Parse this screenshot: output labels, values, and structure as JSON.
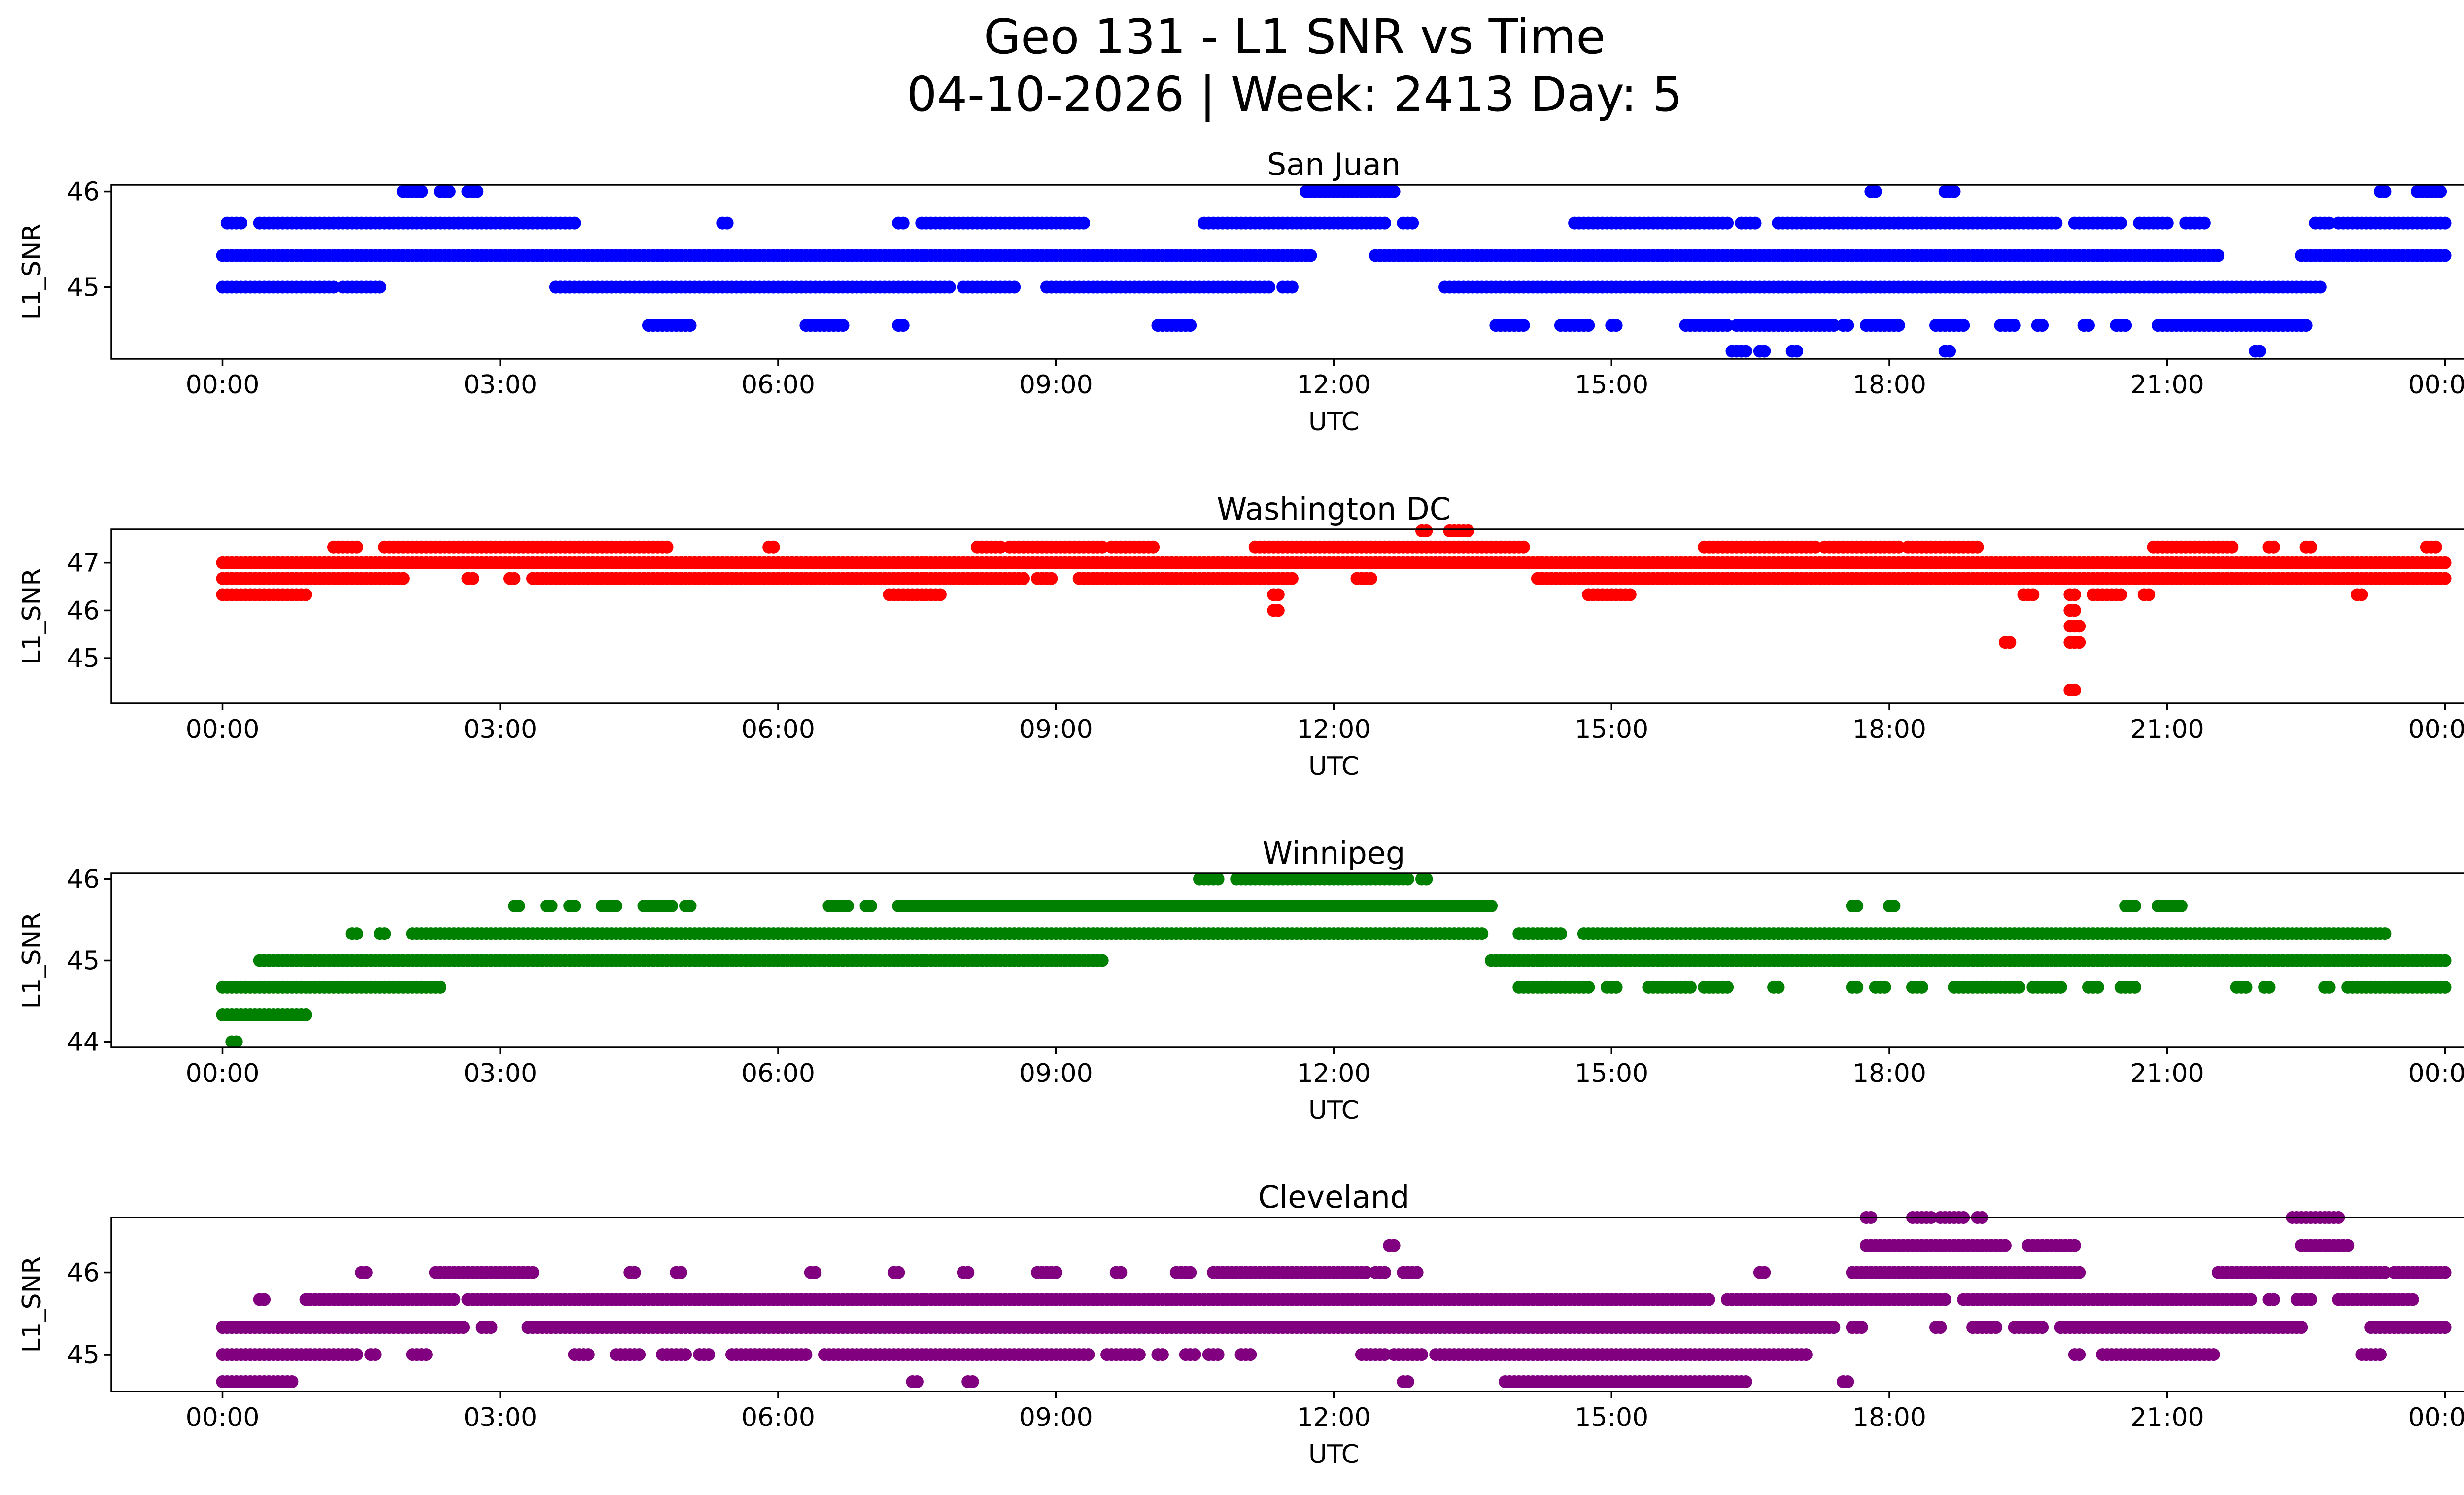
{
  "figure": {
    "title_line1": "Geo 131 - L1 SNR vs Time",
    "title_line2": "04-10-2026 | Week: 2413 Day: 5"
  },
  "chart_data": [
    {
      "type": "scatter",
      "title": "San Juan",
      "xlabel": "UTC",
      "ylabel": "L1_SNR",
      "color": "#0000ff",
      "x_unit": "hours UTC",
      "xlim": [
        -1.2,
        25.2
      ],
      "x_tick_values": [
        0,
        3,
        6,
        9,
        12,
        15,
        18,
        21,
        24
      ],
      "x_tick_labels": [
        "00:00",
        "03:00",
        "06:00",
        "09:00",
        "12:00",
        "15:00",
        "18:00",
        "21:00",
        "00:00"
      ],
      "ylim": [
        44.25,
        46.07
      ],
      "y_ticks": [
        45,
        46
      ],
      "runs": [
        {
          "y": 45.33,
          "x": [
            [
              0.0,
              11.75
            ],
            [
              12.45,
              21.55
            ],
            [
              22.45,
              24.0
            ]
          ]
        },
        {
          "y": 45.0,
          "x": [
            [
              0.0,
              1.2
            ],
            [
              1.3,
              1.7
            ],
            [
              3.65,
              3.75
            ],
            [
              3.6,
              3.65
            ],
            [
              3.6,
              7.85
            ],
            [
              8.0,
              8.55
            ],
            [
              8.9,
              11.3
            ],
            [
              11.45,
              11.55
            ],
            [
              13.2,
              22.65
            ]
          ]
        },
        {
          "y": 45.67,
          "x": [
            [
              0.05,
              0.22
            ],
            [
              0.4,
              3.8
            ],
            [
              5.4,
              5.45
            ],
            [
              7.3,
              7.35
            ],
            [
              7.55,
              9.3
            ],
            [
              10.6,
              12.55
            ],
            [
              12.75,
              12.85
            ],
            [
              14.6,
              16.25
            ],
            [
              16.4,
              16.55
            ],
            [
              16.8,
              19.8
            ],
            [
              20.0,
              20.5
            ],
            [
              20.7,
              21.0
            ],
            [
              21.2,
              21.4
            ],
            [
              22.6,
              22.75
            ],
            [
              22.85,
              24.0
            ]
          ]
        },
        {
          "y": 46.0,
          "x": [
            [
              1.95,
              2.15
            ],
            [
              2.35,
              2.45
            ],
            [
              2.65,
              2.75
            ],
            [
              11.7,
              12.65
            ],
            [
              17.8,
              17.85
            ],
            [
              18.6,
              18.7
            ],
            [
              23.3,
              23.35
            ],
            [
              23.7,
              23.95
            ]
          ]
        },
        {
          "y": 44.6,
          "x": [
            [
              4.6,
              5.05
            ],
            [
              6.3,
              6.7
            ],
            [
              7.3,
              7.35
            ],
            [
              10.1,
              10.45
            ],
            [
              13.75,
              14.05
            ],
            [
              14.45,
              14.75
            ],
            [
              15.0,
              15.05
            ],
            [
              15.8,
              16.25
            ],
            [
              16.35,
              17.4
            ],
            [
              17.5,
              17.55
            ],
            [
              17.75,
              18.1
            ],
            [
              18.5,
              18.8
            ],
            [
              19.2,
              19.35
            ],
            [
              19.6,
              19.65
            ],
            [
              20.1,
              20.15
            ],
            [
              20.45,
              20.55
            ],
            [
              20.9,
              22.45
            ],
            [
              22.45,
              22.5
            ]
          ]
        },
        {
          "y": 44.33,
          "x": [
            [
              16.3,
              16.45
            ],
            [
              16.6,
              16.65
            ],
            [
              16.95,
              17.0
            ],
            [
              18.6,
              18.65
            ],
            [
              21.95,
              22.0
            ]
          ]
        }
      ]
    },
    {
      "type": "scatter",
      "title": "Washington DC",
      "xlabel": "UTC",
      "ylabel": "L1_SNR",
      "color": "#ff0000",
      "x_unit": "hours UTC",
      "xlim": [
        -1.2,
        25.2
      ],
      "x_tick_values": [
        0,
        3,
        6,
        9,
        12,
        15,
        18,
        21,
        24
      ],
      "x_tick_labels": [
        "00:00",
        "03:00",
        "06:00",
        "09:00",
        "12:00",
        "15:00",
        "18:00",
        "21:00",
        "00:00"
      ],
      "ylim": [
        44.05,
        47.7
      ],
      "y_ticks": [
        45,
        46,
        47
      ],
      "runs": [
        {
          "y": 47.0,
          "x": [
            [
              0.0,
              24.0
            ]
          ]
        },
        {
          "y": 46.67,
          "x": [
            [
              0.0,
              1.95
            ],
            [
              2.65,
              2.7
            ],
            [
              3.1,
              3.15
            ],
            [
              3.35,
              8.65
            ],
            [
              8.8,
              8.95
            ],
            [
              9.25,
              11.55
            ],
            [
              12.25,
              12.4
            ],
            [
              14.2,
              24.0
            ]
          ]
        },
        {
          "y": 46.33,
          "x": [
            [
              0.0,
              0.9
            ],
            [
              7.2,
              7.5
            ],
            [
              7.55,
              7.75
            ],
            [
              11.35,
              11.4
            ],
            [
              14.75,
              15.2
            ],
            [
              19.45,
              19.55
            ],
            [
              19.95,
              20.0
            ],
            [
              20.2,
              20.5
            ],
            [
              20.75,
              20.8
            ],
            [
              23.05,
              23.1
            ]
          ]
        },
        {
          "y": 47.33,
          "x": [
            [
              1.2,
              1.45
            ],
            [
              1.75,
              4.8
            ],
            [
              5.9,
              5.95
            ],
            [
              8.15,
              8.4
            ],
            [
              8.5,
              9.5
            ],
            [
              9.6,
              10.05
            ],
            [
              11.15,
              14.05
            ],
            [
              16.0,
              17.2
            ],
            [
              17.3,
              18.1
            ],
            [
              18.2,
              18.95
            ],
            [
              20.85,
              21.7
            ],
            [
              22.1,
              22.15
            ],
            [
              22.5,
              22.55
            ],
            [
              23.8,
              23.9
            ]
          ]
        },
        {
          "y": 47.67,
          "x": [
            [
              12.95,
              13.0
            ],
            [
              13.25,
              13.45
            ]
          ]
        },
        {
          "y": 46.0,
          "x": [
            [
              11.35,
              11.4
            ],
            [
              19.95,
              20.0
            ]
          ]
        },
        {
          "y": 45.67,
          "x": [
            [
              19.95,
              20.05
            ]
          ]
        },
        {
          "y": 45.33,
          "x": [
            [
              19.25,
              19.3
            ],
            [
              19.95,
              20.05
            ]
          ]
        },
        {
          "y": 44.33,
          "x": [
            [
              19.95,
              20.0
            ]
          ]
        }
      ]
    },
    {
      "type": "scatter",
      "title": "Winnipeg",
      "xlabel": "UTC",
      "ylabel": "L1_SNR",
      "color": "#008000",
      "x_unit": "hours UTC",
      "xlim": [
        -1.2,
        25.2
      ],
      "x_tick_values": [
        0,
        3,
        6,
        9,
        12,
        15,
        18,
        21,
        24
      ],
      "x_tick_labels": [
        "00:00",
        "03:00",
        "06:00",
        "09:00",
        "12:00",
        "15:00",
        "18:00",
        "21:00",
        "00:00"
      ],
      "ylim": [
        43.93,
        46.07
      ],
      "y_ticks": [
        44,
        45,
        46
      ],
      "runs": [
        {
          "y": 44.33,
          "x": [
            [
              0.0,
              0.9
            ]
          ]
        },
        {
          "y": 44.67,
          "x": [
            [
              0.0,
              2.35
            ],
            [
              14.0,
              14.75
            ],
            [
              14.95,
              15.05
            ],
            [
              15.4,
              15.7
            ],
            [
              15.75,
              15.85
            ],
            [
              16.0,
              16.25
            ],
            [
              16.75,
              16.8
            ],
            [
              17.6,
              17.65
            ],
            [
              17.85,
              17.95
            ],
            [
              18.25,
              18.35
            ],
            [
              18.7,
              19.4
            ],
            [
              19.55,
              19.85
            ],
            [
              20.15,
              20.25
            ],
            [
              20.5,
              20.65
            ],
            [
              21.75,
              21.85
            ],
            [
              22.05,
              22.1
            ],
            [
              22.7,
              22.75
            ],
            [
              22.95,
              24.0
            ]
          ]
        },
        {
          "y": 45.0,
          "x": [
            [
              0.4,
              9.5
            ],
            [
              13.7,
              24.0
            ]
          ]
        },
        {
          "y": 45.33,
          "x": [
            [
              1.4,
              1.45
            ],
            [
              1.7,
              1.75
            ],
            [
              2.05,
              2.25
            ],
            [
              2.3,
              13.6
            ],
            [
              14.0,
              14.45
            ],
            [
              14.7,
              23.25
            ],
            [
              23.3,
              23.35
            ]
          ]
        },
        {
          "y": 45.67,
          "x": [
            [
              3.15,
              3.2
            ],
            [
              3.5,
              3.55
            ],
            [
              3.75,
              3.8
            ],
            [
              4.1,
              4.25
            ],
            [
              4.55,
              4.85
            ],
            [
              5.0,
              5.05
            ],
            [
              6.55,
              6.75
            ],
            [
              6.95,
              7.0
            ],
            [
              7.3,
              13.7
            ],
            [
              17.6,
              17.65
            ],
            [
              18.0,
              18.05
            ],
            [
              20.55,
              20.65
            ],
            [
              20.9,
              21.15
            ]
          ]
        },
        {
          "y": 46.0,
          "x": [
            [
              10.55,
              10.75
            ],
            [
              10.95,
              12.8
            ],
            [
              12.95,
              13.0
            ]
          ]
        },
        {
          "y": 44.0,
          "x": [
            [
              0.1,
              0.15
            ]
          ]
        }
      ]
    },
    {
      "type": "scatter",
      "title": "Cleveland",
      "xlabel": "UTC",
      "ylabel": "L1_SNR",
      "color": "#800080",
      "x_unit": "hours UTC",
      "xlim": [
        -1.2,
        25.2
      ],
      "x_tick_values": [
        0,
        3,
        6,
        9,
        12,
        15,
        18,
        21,
        24
      ],
      "x_tick_labels": [
        "00:00",
        "03:00",
        "06:00",
        "09:00",
        "12:00",
        "15:00",
        "18:00",
        "21:00",
        "00:00"
      ],
      "ylim": [
        44.55,
        46.67
      ],
      "y_ticks": [
        45,
        46
      ],
      "runs": [
        {
          "y": 44.67,
          "x": [
            [
              0.0,
              0.75
            ],
            [
              7.45,
              7.5
            ],
            [
              8.05,
              8.1
            ],
            [
              12.75,
              12.8
            ],
            [
              13.85,
              16.45
            ],
            [
              17.5,
              17.55
            ]
          ]
        },
        {
          "y": 45.0,
          "x": [
            [
              0.0,
              1.45
            ],
            [
              1.6,
              1.65
            ],
            [
              2.05,
              2.2
            ],
            [
              3.8,
              3.95
            ],
            [
              4.25,
              4.5
            ],
            [
              4.75,
              5.0
            ],
            [
              5.15,
              5.25
            ],
            [
              5.5,
              6.3
            ],
            [
              6.5,
              9.35
            ],
            [
              9.55,
              9.9
            ],
            [
              10.1,
              10.15
            ],
            [
              10.4,
              10.5
            ],
            [
              10.65,
              10.75
            ],
            [
              11.0,
              11.1
            ],
            [
              12.3,
              12.55
            ],
            [
              12.65,
              12.95
            ],
            [
              13.1,
              17.1
            ],
            [
              20.0,
              20.05
            ],
            [
              20.3,
              21.5
            ],
            [
              23.1,
              23.3
            ]
          ]
        },
        {
          "y": 45.33,
          "x": [
            [
              0.0,
              2.6
            ],
            [
              2.8,
              2.9
            ],
            [
              3.3,
              17.4
            ],
            [
              17.6,
              17.7
            ],
            [
              18.5,
              18.55
            ],
            [
              18.9,
              19.15
            ],
            [
              19.35,
              19.65
            ],
            [
              19.85,
              22.45
            ],
            [
              23.2,
              24.0
            ]
          ]
        },
        {
          "y": 45.67,
          "x": [
            [
              0.4,
              0.45
            ],
            [
              0.9,
              2.5
            ],
            [
              2.65,
              16.05
            ],
            [
              16.25,
              18.6
            ],
            [
              18.8,
              21.9
            ],
            [
              22.1,
              22.15
            ],
            [
              22.4,
              22.55
            ],
            [
              22.85,
              23.65
            ]
          ]
        },
        {
          "y": 46.0,
          "x": [
            [
              1.5,
              1.55
            ],
            [
              2.3,
              3.35
            ],
            [
              4.4,
              4.45
            ],
            [
              4.9,
              4.95
            ],
            [
              6.35,
              6.4
            ],
            [
              7.25,
              7.3
            ],
            [
              8.0,
              8.05
            ],
            [
              8.8,
              9.0
            ],
            [
              9.65,
              9.7
            ],
            [
              10.3,
              10.45
            ],
            [
              10.7,
              12.35
            ],
            [
              12.45,
              12.55
            ],
            [
              12.75,
              12.9
            ],
            [
              16.6,
              16.65
            ],
            [
              17.6,
              20.05
            ],
            [
              21.55,
              23.35
            ],
            [
              23.45,
              24.0
            ]
          ]
        },
        {
          "y": 46.33,
          "x": [
            [
              12.6,
              12.65
            ],
            [
              17.75,
              19.25
            ],
            [
              19.5,
              20.0
            ],
            [
              22.45,
              22.95
            ]
          ]
        },
        {
          "y": 46.67,
          "x": [
            [
              17.75,
              17.8
            ],
            [
              18.25,
              18.45
            ],
            [
              18.55,
              18.8
            ],
            [
              18.95,
              19.0
            ],
            [
              22.35,
              22.85
            ]
          ]
        }
      ]
    }
  ]
}
